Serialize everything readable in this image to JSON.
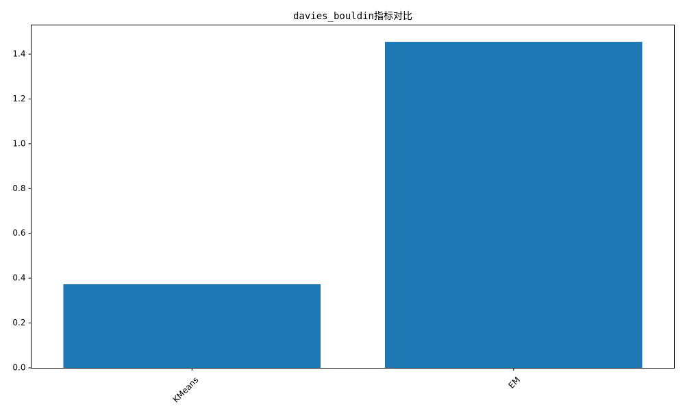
{
  "chart_data": {
    "type": "bar",
    "title": "davies_bouldin指标对比",
    "categories": [
      "KMeans",
      "EM"
    ],
    "values": [
      0.373,
      1.455
    ],
    "xlabel": "",
    "ylabel": "",
    "ylim": [
      0,
      1.53
    ],
    "yticks": [
      0.0,
      0.2,
      0.4,
      0.6,
      0.8,
      1.0,
      1.2,
      1.4
    ],
    "ytick_labels": [
      "0.0",
      "0.2",
      "0.4",
      "0.6",
      "0.8",
      "1.0",
      "1.2",
      "1.4"
    ],
    "xtick_rotation": 45,
    "grid": false,
    "legend": "none",
    "bar_color": "#1f77b4"
  }
}
